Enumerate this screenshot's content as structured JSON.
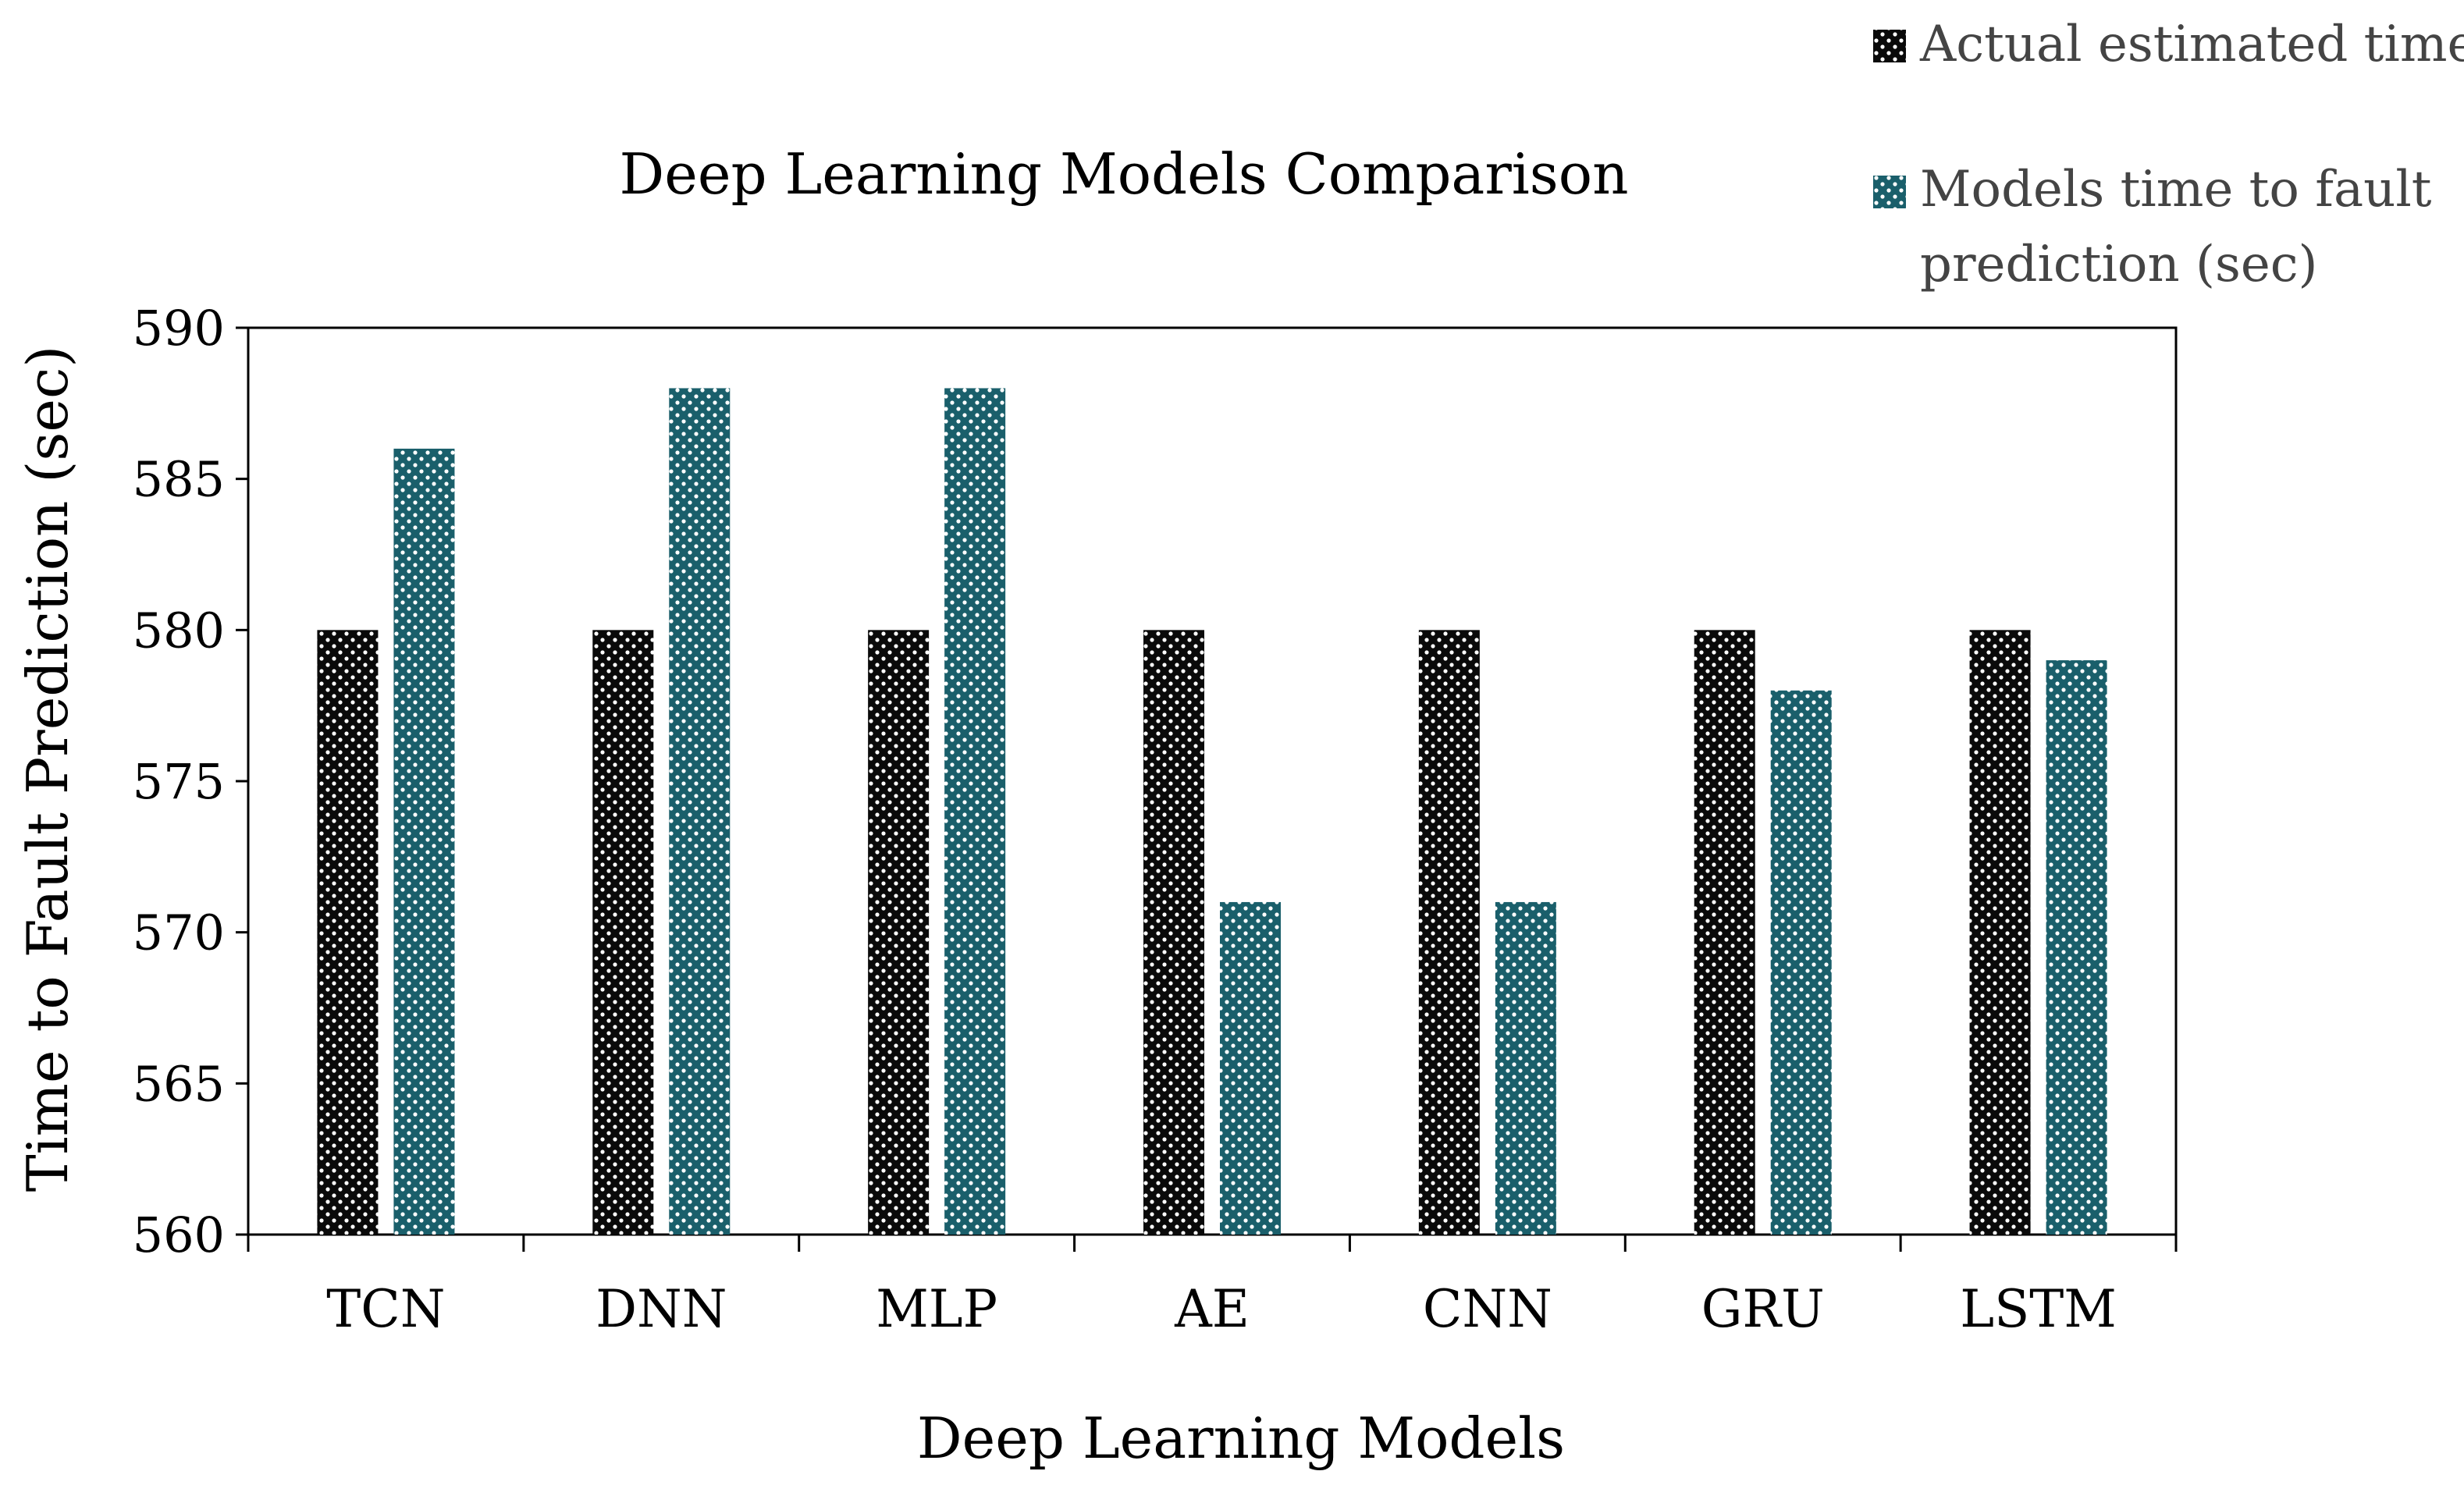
{
  "chart_data": {
    "type": "bar",
    "title": "Deep Learning Models Comparison",
    "xlabel": "Deep Learning Models",
    "ylabel": "Time to Fault Prediction (sec)",
    "ylim": [
      560,
      590
    ],
    "yticks": [
      "560",
      "565",
      "570",
      "575",
      "580",
      "585",
      "590"
    ],
    "categories": [
      "TCN",
      "DNN",
      "MLP",
      "AE",
      "CNN",
      "GRU",
      "LSTM"
    ],
    "series": [
      {
        "name": "Actual estimated time",
        "color": "#0a0a0a",
        "values": [
          580,
          580,
          580,
          580,
          580,
          580,
          580
        ]
      },
      {
        "name": "Models time to fault prediction (sec)",
        "color": "#1a5f6b",
        "values": [
          586,
          588,
          588,
          571,
          571,
          578,
          579
        ]
      }
    ],
    "legend_position": "top-right",
    "grid": false
  }
}
